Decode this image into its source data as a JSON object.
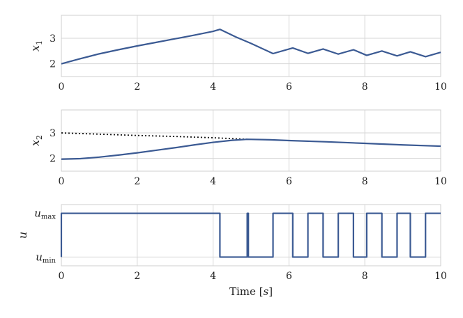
{
  "chart_data": [
    {
      "type": "line",
      "ylabel": "x",
      "ylabel_sub": "1",
      "xlim": [
        0,
        10
      ],
      "ylim": [
        1.5,
        3.9
      ],
      "xticks": [
        "0",
        "2",
        "4",
        "6",
        "8",
        "10"
      ],
      "xtick_values": [
        0,
        2,
        4,
        6,
        8,
        10
      ],
      "yticks": [
        "2",
        "3"
      ],
      "ytick_values": [
        2,
        3
      ],
      "grid": true,
      "series": [
        {
          "style": "solid",
          "color": "#3b5a93",
          "x": [
            0,
            0.5,
            1,
            1.5,
            2,
            2.5,
            3,
            3.5,
            4,
            4.18,
            4.6,
            5,
            5.58,
            6.1,
            6.5,
            6.9,
            7.3,
            7.7,
            8.05,
            8.45,
            8.85,
            9.2,
            9.6,
            10
          ],
          "y": [
            2.0,
            2.2,
            2.39,
            2.55,
            2.7,
            2.84,
            2.98,
            3.12,
            3.27,
            3.35,
            3.05,
            2.8,
            2.4,
            2.62,
            2.41,
            2.58,
            2.38,
            2.55,
            2.33,
            2.5,
            2.31,
            2.47,
            2.28,
            2.45
          ]
        }
      ]
    },
    {
      "type": "line",
      "ylabel": "x",
      "ylabel_sub": "2",
      "xlim": [
        0,
        10
      ],
      "ylim": [
        1.5,
        3.9
      ],
      "xticks": [
        "0",
        "2",
        "4",
        "6",
        "8",
        "10"
      ],
      "xtick_values": [
        0,
        2,
        4,
        6,
        8,
        10
      ],
      "yticks": [
        "2",
        "3"
      ],
      "ytick_values": [
        2,
        3
      ],
      "grid": true,
      "series": [
        {
          "style": "dotted",
          "color": "#111111",
          "x": [
            0,
            1,
            2,
            3,
            4,
            4.9
          ],
          "y": [
            3.0,
            2.95,
            2.9,
            2.86,
            2.81,
            2.75
          ]
        },
        {
          "style": "solid",
          "color": "#3b5a93",
          "x": [
            0,
            0.5,
            1,
            1.5,
            2,
            2.5,
            3,
            3.5,
            4,
            4.5,
            4.9,
            5.5,
            6,
            7,
            8,
            9,
            10
          ],
          "y": [
            1.97,
            1.99,
            2.05,
            2.13,
            2.22,
            2.32,
            2.42,
            2.53,
            2.63,
            2.71,
            2.75,
            2.73,
            2.7,
            2.65,
            2.59,
            2.53,
            2.48
          ]
        }
      ]
    },
    {
      "type": "line",
      "ylabel": "u",
      "xlabel": "Time [s]",
      "xlabel_text": "Time [",
      "xlabel_var": "s",
      "xlabel_end": "]",
      "xlim": [
        0,
        10
      ],
      "ylim": [
        -0.2,
        1.2
      ],
      "xticks": [
        "0",
        "2",
        "4",
        "6",
        "8",
        "10"
      ],
      "xtick_values": [
        0,
        2,
        4,
        6,
        8,
        10
      ],
      "yticks": [
        "u_max",
        "u_min"
      ],
      "ytick_values": [
        1,
        0
      ],
      "ytick_main": [
        "u",
        "u"
      ],
      "ytick_sub": [
        "max",
        "min"
      ],
      "grid": true,
      "series": [
        {
          "style": "step",
          "color": "#3b5a93",
          "x": [
            0,
            0,
            4.18,
            4.18,
            4.9,
            4.9,
            4.93,
            4.93,
            5.58,
            5.58,
            6.1,
            6.1,
            6.5,
            6.5,
            6.9,
            6.9,
            7.3,
            7.3,
            7.7,
            7.7,
            8.05,
            8.05,
            8.45,
            8.45,
            8.85,
            8.85,
            9.2,
            9.2,
            9.6,
            9.6,
            10
          ],
          "y": [
            0,
            1,
            1,
            0,
            0,
            1,
            1,
            0,
            0,
            1,
            1,
            0,
            0,
            1,
            1,
            0,
            0,
            1,
            1,
            0,
            0,
            1,
            1,
            0,
            0,
            1,
            1,
            0,
            0,
            1,
            1
          ]
        }
      ]
    }
  ]
}
